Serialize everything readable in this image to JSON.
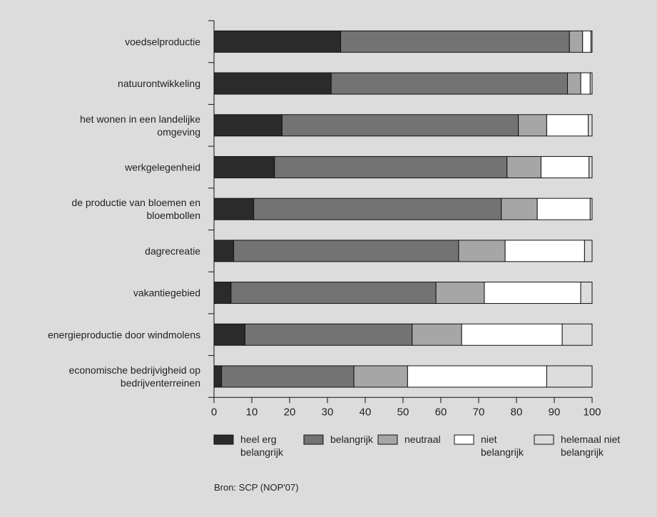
{
  "source": "Bron: SCP (NOP'07)",
  "chart_data": {
    "type": "bar",
    "orientation": "horizontal",
    "stacked": true,
    "title": "",
    "xlabel": "",
    "ylabel": "",
    "xlim": [
      0,
      100
    ],
    "xticks": [
      "0",
      "10",
      "20",
      "30",
      "40",
      "50",
      "60",
      "70",
      "80",
      "90",
      "100"
    ],
    "grid": false,
    "legend_position": "bottom",
    "categories": [
      [
        "voedselproductie"
      ],
      [
        "natuurontwikkeling"
      ],
      [
        "het wonen in een landelijke",
        "omgeving"
      ],
      [
        "werkgelegenheid"
      ],
      [
        "de productie van bloemen en",
        "bloembollen"
      ],
      [
        "dagrecreatie"
      ],
      [
        "vakantiegebied"
      ],
      [
        "energieproductie door windmolens"
      ],
      [
        "economische bedrijvigheid op",
        "bedrijventerreinen"
      ]
    ],
    "series": [
      {
        "name": [
          "heel erg",
          "belangrijk"
        ],
        "color": "#2b2b2b",
        "values": [
          33.5,
          31,
          18,
          16,
          10.5,
          5.2,
          4.5,
          8.2,
          2
        ]
      },
      {
        "name": [
          "belangrijk"
        ],
        "color": "#737373",
        "values": [
          60.5,
          62.5,
          62.5,
          61.5,
          65.5,
          59.5,
          54.2,
          44.2,
          35
        ]
      },
      {
        "name": [
          "neutraal"
        ],
        "color": "#a6a6a6",
        "values": [
          3.5,
          3.5,
          7.5,
          9,
          9.5,
          12.3,
          12.8,
          13.1,
          14.2
        ]
      },
      {
        "name": [
          "niet",
          "belangrijk"
        ],
        "color": "#ffffff",
        "values": [
          2.2,
          2.5,
          11,
          12.7,
          14,
          21,
          25.5,
          26.6,
          36.8
        ]
      },
      {
        "name": [
          "helemaal niet",
          "belangrijk"
        ],
        "color": "#dcdcdc",
        "values": [
          0.3,
          0.5,
          1,
          0.8,
          0.5,
          2,
          3,
          7.9,
          12
        ]
      }
    ]
  }
}
